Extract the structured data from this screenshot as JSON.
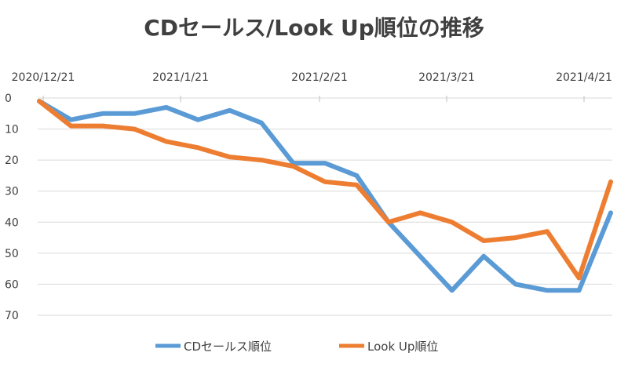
{
  "chart_data": {
    "type": "line",
    "title": "CDセールス/Look Up順位の推移",
    "x_tick_labels": [
      "2020/12/21",
      "2021/1/21",
      "2021/2/21",
      "2021/3/21",
      "2021/4/21"
    ],
    "y_tick_labels": [
      "0",
      "10",
      "20",
      "30",
      "40",
      "50",
      "60",
      "70"
    ],
    "ylim": [
      0,
      70
    ],
    "y_reversed": true,
    "x_axis_position": "top",
    "grid": true,
    "legend_position": "bottom",
    "series": [
      {
        "name": "CDセールス順位",
        "color": "#5b9bd5",
        "values": [
          1,
          7,
          5,
          5,
          3,
          7,
          4,
          8,
          21,
          21,
          25,
          40,
          51,
          62,
          51,
          60,
          62,
          62,
          37
        ]
      },
      {
        "name": "Look Up順位",
        "color": "#ed7d31",
        "values": [
          1,
          9,
          9,
          10,
          14,
          16,
          19,
          20,
          22,
          27,
          28,
          40,
          37,
          40,
          46,
          45,
          43,
          58,
          27
        ]
      }
    ]
  }
}
